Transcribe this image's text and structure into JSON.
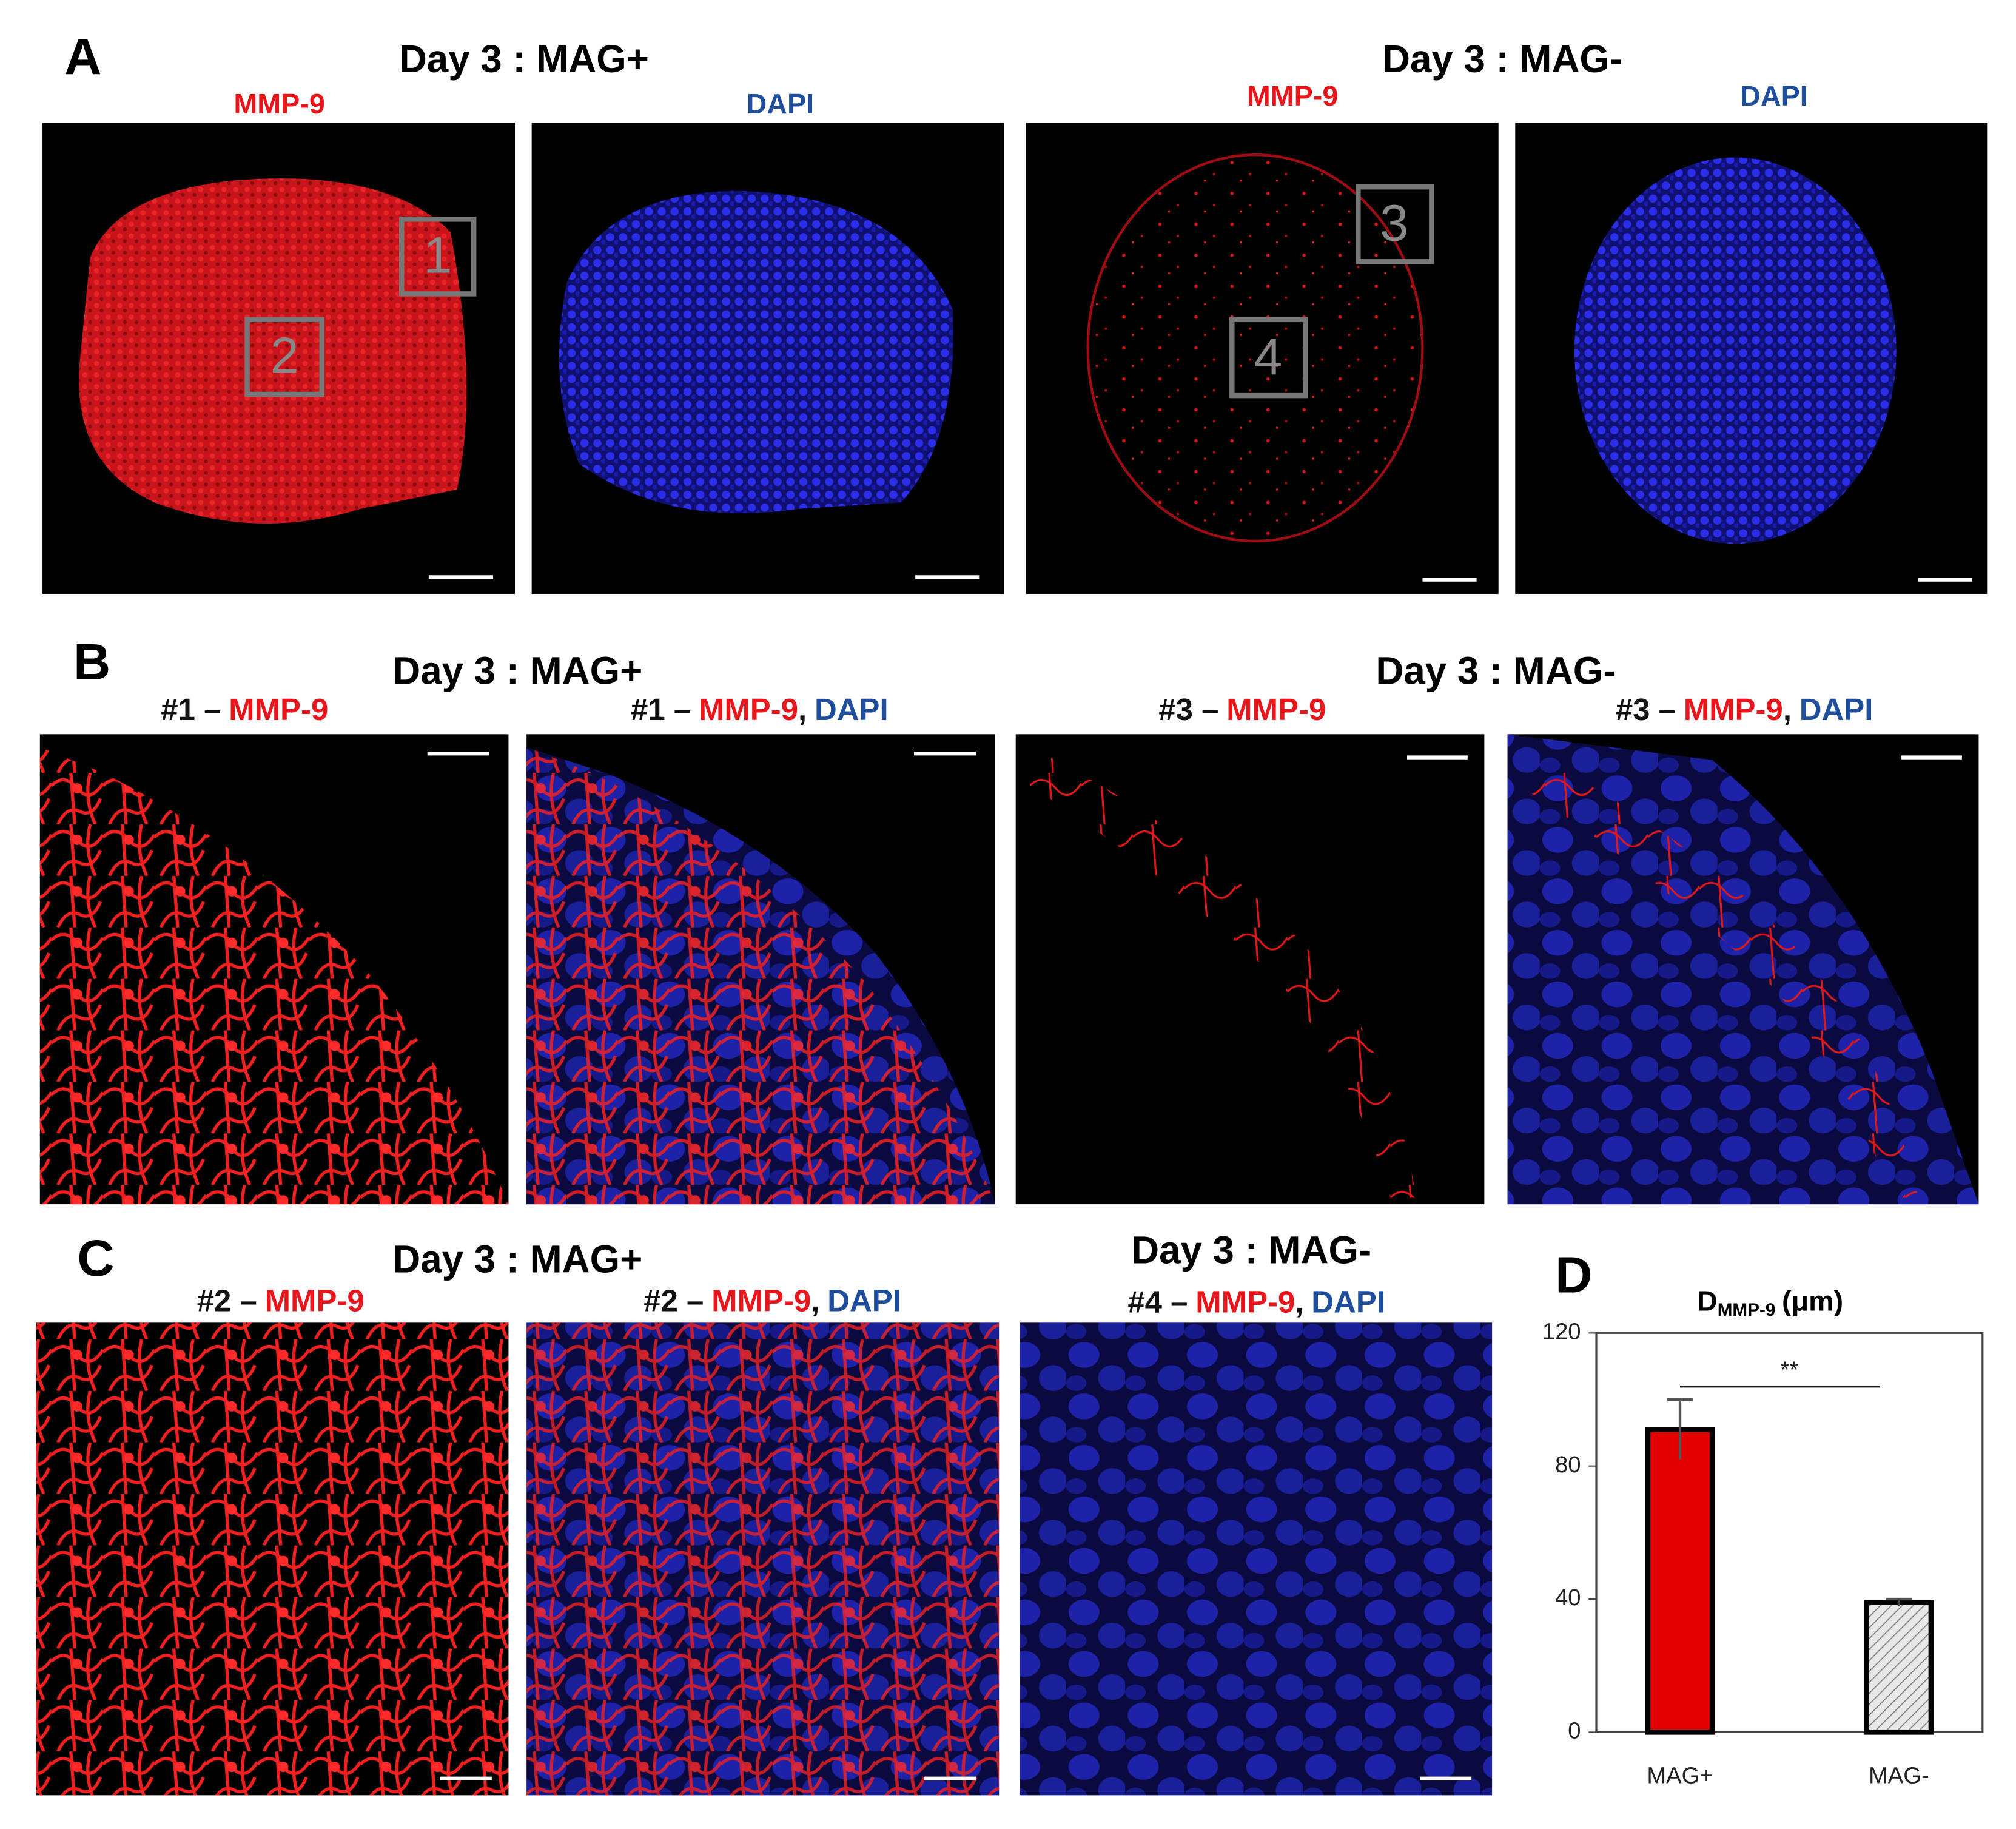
{
  "panel_a": {
    "letter": "A",
    "titles": [
      "Day 3 : MAG+",
      "Day 3 : MAG-"
    ],
    "labels": [
      "MMP-9",
      "DAPI",
      "MMP-9",
      "DAPI"
    ],
    "boxes": [
      "1",
      "2",
      "3",
      "4"
    ]
  },
  "panel_b": {
    "letter": "B",
    "titles": [
      "Day 3 : MAG+",
      "Day 3 : MAG-"
    ],
    "captions": [
      [
        "#1 –",
        "MMP-9"
      ],
      [
        "#1 –",
        "MMP-9",
        ",",
        "DAPI"
      ],
      [
        "#3 –",
        "MMP-9"
      ],
      [
        "#3 –",
        "MMP-9",
        ",",
        "DAPI"
      ]
    ]
  },
  "panel_c": {
    "letter": "C",
    "titles": [
      "Day 3 : MAG+",
      "Day 3 : MAG-"
    ],
    "captions": [
      [
        "#2 –",
        "MMP-9"
      ],
      [
        "#2 –",
        "MMP-9",
        ",",
        "DAPI"
      ],
      [
        "#4 –",
        "MMP-9",
        ",",
        "DAPI"
      ]
    ]
  },
  "panel_d": {
    "letter": "D"
  },
  "chart_data": {
    "type": "bar",
    "title": "D",
    "title_subscript": "MMP-9",
    "title_unit": "(μm)",
    "categories": [
      "MAG+",
      "MAG-"
    ],
    "values": [
      91,
      39
    ],
    "errors": [
      9,
      1
    ],
    "colors": [
      "#e00000",
      "hatch"
    ],
    "ylim": [
      0,
      120
    ],
    "yticks": [
      0,
      40,
      80,
      120
    ],
    "significance": "**"
  }
}
